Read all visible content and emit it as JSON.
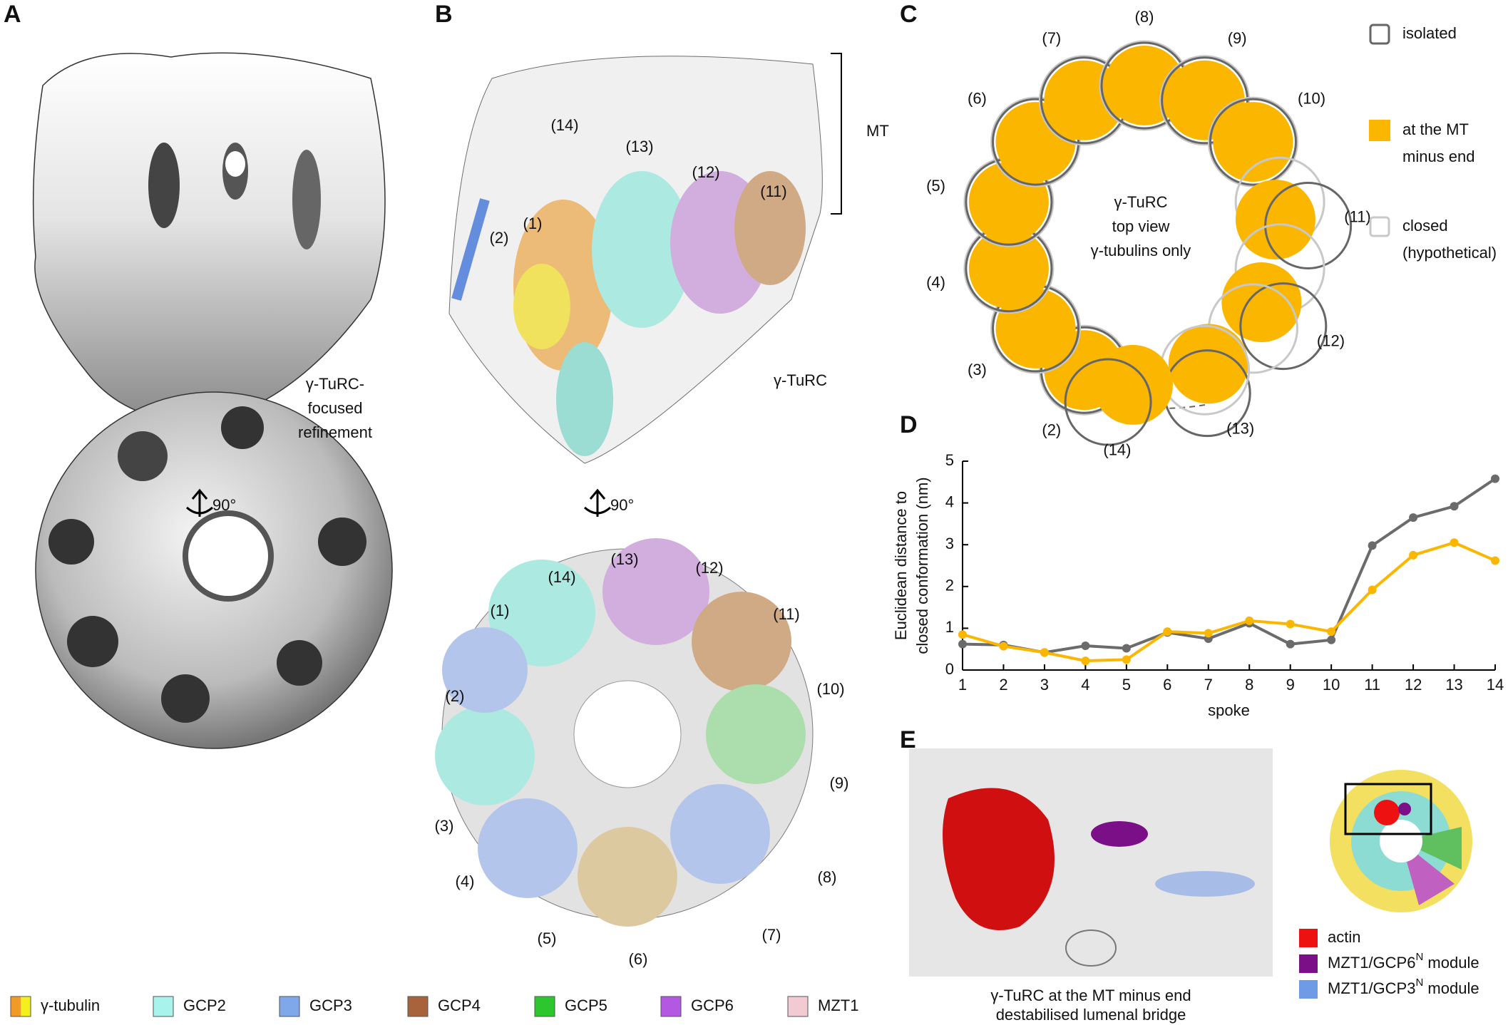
{
  "panels": {
    "a": {
      "letter": "A",
      "caption": [
        "γ-TuRC-",
        "focused",
        "refinement"
      ],
      "rotation": "90°"
    },
    "b": {
      "letter": "B",
      "mt": "MT",
      "label": "γ-TuRC",
      "rotation": "90°",
      "top_spokes": [
        "(14)",
        "(13)",
        "(12)",
        "(11)",
        "(2)",
        "(1)"
      ],
      "bottom_spokes": [
        "(13)",
        "(12)",
        "(14)",
        "(11)",
        "(1)",
        "(10)",
        "(2)",
        "(9)",
        "(3)",
        "(8)",
        "(4)",
        "(7)",
        "(5)",
        "(6)"
      ]
    },
    "c": {
      "letter": "C",
      "center": [
        "γ-TuRC",
        "top view",
        "γ-tubulins only"
      ],
      "spokes": [
        "(2)",
        "(3)",
        "(4)",
        "(5)",
        "(6)",
        "(7)",
        "(8)",
        "(9)",
        "(10)",
        "(11)",
        "(12)",
        "(13)",
        "(14)"
      ],
      "legend": [
        {
          "lines": [
            "isolated"
          ],
          "color": "#666666"
        },
        {
          "lines": [
            "at the MT",
            "minus end"
          ],
          "color": "#fbb600"
        },
        {
          "lines": [
            "closed",
            "(hypothetical)"
          ],
          "color": "#c8c8c8"
        }
      ]
    },
    "d": {
      "letter": "D"
    },
    "e": {
      "letter": "E",
      "caption": [
        "γ-TuRC at the MT minus end",
        "destabilised lumenal bridge"
      ],
      "legend": [
        {
          "text": "actin",
          "color": "#ee1111"
        },
        {
          "text": "MZT1/GCP6",
          "sup": "N",
          "rest": " module",
          "color": "#7a0f88"
        },
        {
          "text": "MZT1/GCP3",
          "sup": "N",
          "rest": " module",
          "color": "#6f9be6"
        }
      ]
    }
  },
  "legend": [
    {
      "text": "γ-tubulin",
      "color": "#f09a28",
      "color2": "#f4f01e"
    },
    {
      "text": "GCP2",
      "color": "#a8f4ec"
    },
    {
      "text": "GCP3",
      "color": "#7fa8ea"
    },
    {
      "text": "GCP4",
      "color": "#a8623c"
    },
    {
      "text": "GCP5",
      "color": "#2ec62e"
    },
    {
      "text": "GCP6",
      "color": "#b458e4"
    },
    {
      "text": "MZT1",
      "color": "#f2cad2"
    }
  ],
  "chart_data": {
    "type": "line",
    "y_label": [
      "Euclidean distance to",
      "closed conformation (nm)"
    ],
    "x_label": "spoke",
    "x": [
      1,
      2,
      3,
      4,
      5,
      6,
      7,
      8,
      9,
      10,
      11,
      12,
      13,
      14
    ],
    "series": [
      {
        "color": "#6b6b6b",
        "values": [
          0.62,
          0.6,
          0.42,
          0.58,
          0.52,
          0.9,
          0.75,
          1.12,
          0.62,
          0.72,
          2.98,
          3.65,
          3.92,
          4.58
        ]
      },
      {
        "color": "#fbb600",
        "values": [
          0.85,
          0.57,
          0.42,
          0.22,
          0.25,
          0.92,
          0.88,
          1.18,
          1.1,
          0.92,
          1.92,
          2.75,
          3.05,
          2.62
        ]
      }
    ],
    "xlim": [
      1,
      14
    ],
    "xticks": [
      1,
      2,
      3,
      4,
      5,
      6,
      7,
      8,
      9,
      10,
      11,
      12,
      13,
      14
    ],
    "ylim": [
      0,
      5
    ],
    "yticks": [
      0,
      1,
      2,
      3,
      4,
      5
    ]
  }
}
